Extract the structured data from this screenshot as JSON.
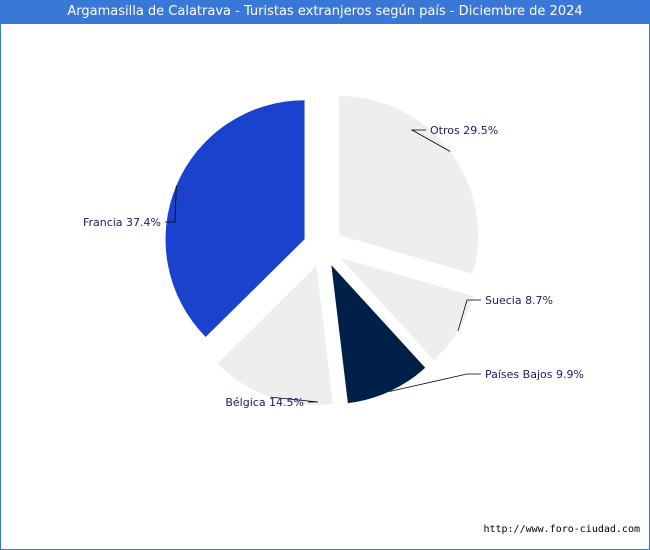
{
  "header": {
    "title": "Argamasilla de Calatrava - Turistas extranjeros según país - Diciembre de 2024"
  },
  "footer": {
    "source": "http://www.foro-ciudad.com"
  },
  "colors": {
    "accent": "#3a78d8",
    "francia": "#1b42cc",
    "paises_bajos": "#00204a",
    "other": "#eeeeee",
    "label": "#1a1a6e"
  },
  "chart_data": {
    "type": "pie",
    "title": "Argamasilla de Calatrava - Turistas extranjeros según país - Diciembre de 2024",
    "slices": [
      {
        "name": "Otros",
        "value": 29.5,
        "label": "Otros 29.5%",
        "color": "#eeeeee"
      },
      {
        "name": "Suecia",
        "value": 8.7,
        "label": "Suecia 8.7%",
        "color": "#eeeeee"
      },
      {
        "name": "Países Bajos",
        "value": 9.9,
        "label": "Países Bajos 9.9%",
        "color": "#00204a"
      },
      {
        "name": "Bélgica",
        "value": 14.5,
        "label": "Bélgica 14.5%",
        "color": "#eeeeee"
      },
      {
        "name": "Francia",
        "value": 37.4,
        "label": "Francia 37.4%",
        "color": "#1b42cc"
      }
    ]
  }
}
